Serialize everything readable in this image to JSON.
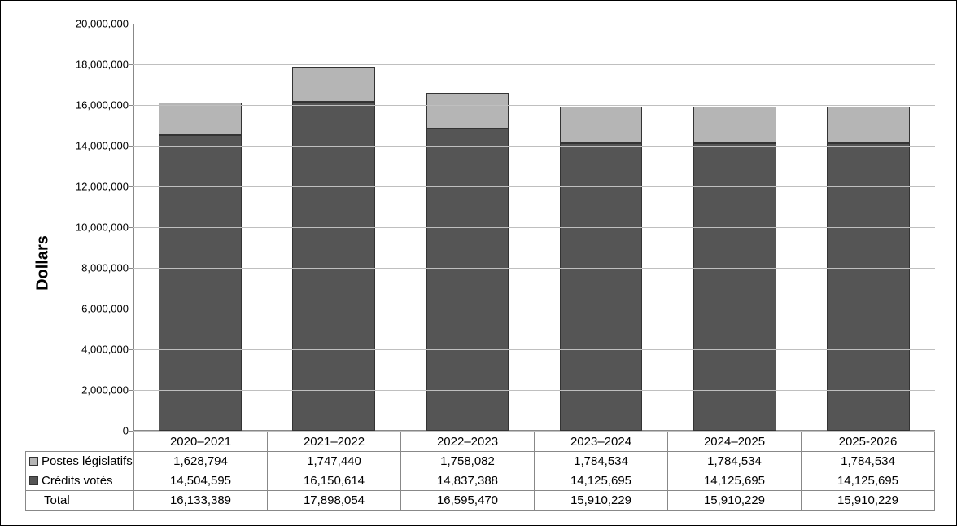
{
  "chart": {
    "type": "bar-stacked",
    "y_axis_label": "Dollars",
    "y_axis_label_fontsize": 20,
    "ylim": [
      0,
      20000000
    ],
    "ytick_step": 2000000,
    "y_ticks": [
      0,
      2000000,
      4000000,
      6000000,
      8000000,
      10000000,
      12000000,
      14000000,
      16000000,
      18000000,
      20000000
    ],
    "y_tick_labels": [
      "0",
      "2,000,000",
      "4,000,000",
      "6,000,000",
      "8,000,000",
      "10,000,000",
      "12,000,000",
      "14,000,000",
      "16,000,000",
      "18,000,000",
      "20,000,000"
    ],
    "categories": [
      "2020–2021",
      "2021–2022",
      "2022–2023",
      "2023–2024",
      "2024–2025",
      "2025-2026"
    ],
    "series": [
      {
        "key": "postes",
        "name": "Postes législatifs",
        "color": "#b5b5b5",
        "values": [
          1628794,
          1747440,
          1758082,
          1784534,
          1784534,
          1784534
        ],
        "labels": [
          "1,628,794",
          "1,747,440",
          "1,758,082",
          "1,784,534",
          "1,784,534",
          "1,784,534"
        ]
      },
      {
        "key": "credits",
        "name": "Crédits votés",
        "color": "#555555",
        "values": [
          14504595,
          16150614,
          14837388,
          14125695,
          14125695,
          14125695
        ],
        "labels": [
          "14,504,595",
          "16,150,614",
          "14,837,388",
          "14,125,695",
          "14,125,695",
          "14,125,695"
        ]
      }
    ],
    "totals": {
      "name": "Total",
      "values": [
        16133389,
        17898054,
        16595470,
        15910229,
        15910229,
        15910229
      ],
      "labels": [
        "16,133,389",
        "17,898,054",
        "16,595,470",
        "15,910,229",
        "15,910,229",
        "15,910,229"
      ]
    },
    "background_color": "#ffffff",
    "grid_color": "#bfbfbf",
    "axis_color": "#888888",
    "tick_fontsize": 13,
    "table_fontsize": 15,
    "bar_width": 0.62,
    "bar_border_color": "#333333"
  }
}
